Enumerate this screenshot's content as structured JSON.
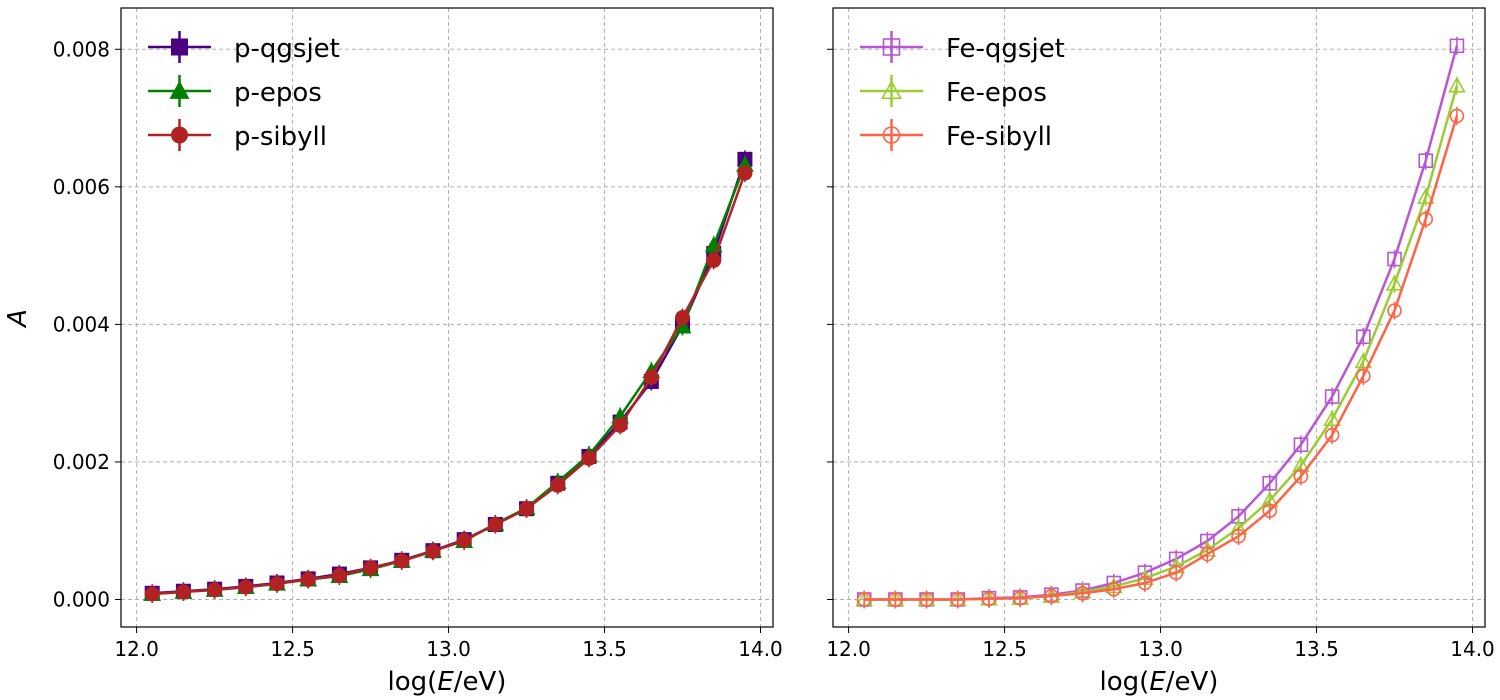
{
  "chart_data": [
    {
      "type": "line",
      "xlabel": "log(E/eV)",
      "ylabel": "A",
      "xlim": [
        11.95,
        14.04
      ],
      "ylim": [
        -0.0004,
        0.0086
      ],
      "xticks": [
        "12.0",
        "12.5",
        "13.0",
        "13.5",
        "14.0"
      ],
      "yticks": [
        "0.000",
        "0.002",
        "0.004",
        "0.006",
        "0.008"
      ],
      "grid": true,
      "legend_position": "top-left",
      "x": [
        12.05,
        12.15,
        12.25,
        12.35,
        12.45,
        12.55,
        12.65,
        12.75,
        12.85,
        12.95,
        13.05,
        13.15,
        13.25,
        13.35,
        13.45,
        13.55,
        13.65,
        13.75,
        13.85,
        13.95
      ],
      "series": [
        {
          "name": "p-qgsjet",
          "color": "#4b0082",
          "marker": "square",
          "filled": true,
          "values": [
            9e-05,
            0.00012,
            0.00015,
            0.00019,
            0.00024,
            0.0003,
            0.00037,
            0.00046,
            0.00057,
            0.00071,
            0.00087,
            0.00109,
            0.00132,
            0.00169,
            0.00208,
            0.00258,
            0.00317,
            0.00398,
            0.00503,
            0.0064
          ]
        },
        {
          "name": "p-epos",
          "color": "#008000",
          "marker": "triangle",
          "filled": true,
          "values": [
            8e-05,
            0.00011,
            0.00014,
            0.00018,
            0.00023,
            0.00029,
            0.00034,
            0.00044,
            0.00056,
            0.00071,
            0.00085,
            0.0011,
            0.00133,
            0.00171,
            0.0021,
            0.00266,
            0.00332,
            0.00397,
            0.00515,
            0.00632
          ]
        },
        {
          "name": "p-sibyll",
          "color": "#b22222",
          "marker": "circle",
          "filled": true,
          "values": [
            8e-05,
            0.00011,
            0.00014,
            0.00018,
            0.00023,
            0.00029,
            0.00035,
            0.00046,
            0.00056,
            0.0007,
            0.00086,
            0.00109,
            0.00132,
            0.00166,
            0.00205,
            0.00253,
            0.00323,
            0.0041,
            0.00493,
            0.0062
          ]
        }
      ]
    },
    {
      "type": "line",
      "xlabel": "log(E/eV)",
      "ylabel": "",
      "xlim": [
        11.95,
        14.04
      ],
      "ylim": [
        -0.0004,
        0.0086
      ],
      "xticks": [
        "12.0",
        "12.5",
        "13.0",
        "13.5",
        "14.0"
      ],
      "yticks": [
        "0.000",
        "0.002",
        "0.004",
        "0.006",
        "0.008"
      ],
      "grid": true,
      "legend_position": "top-left",
      "x": [
        12.05,
        12.15,
        12.25,
        12.35,
        12.45,
        12.55,
        12.65,
        12.75,
        12.85,
        12.95,
        13.05,
        13.15,
        13.25,
        13.35,
        13.45,
        13.55,
        13.65,
        13.75,
        13.85,
        13.95
      ],
      "series": [
        {
          "name": "Fe-qgsjet",
          "color": "#ba55d3",
          "marker": "square",
          "filled": false,
          "values": [
            0.0,
            0.0,
            0.0,
            0.0,
            2e-05,
            3e-05,
            7e-05,
            0.00013,
            0.00024,
            0.00039,
            0.00059,
            0.00085,
            0.00121,
            0.00169,
            0.00225,
            0.00295,
            0.00382,
            0.00495,
            0.00638,
            0.00805
          ]
        },
        {
          "name": "Fe-epos",
          "color": "#9acd32",
          "marker": "triangle",
          "filled": false,
          "values": [
            0.0,
            0.0,
            0.0,
            0.0,
            1e-05,
            2e-05,
            5e-05,
            0.00011,
            0.00019,
            0.00031,
            0.00048,
            0.00072,
            0.00104,
            0.00144,
            0.00195,
            0.00262,
            0.00346,
            0.00459,
            0.00585,
            0.00747
          ]
        },
        {
          "name": "Fe-sibyll",
          "color": "#ff6347",
          "marker": "circle",
          "filled": false,
          "values": [
            0.0,
            0.0,
            0.0,
            0.0,
            1e-05,
            2e-05,
            5e-05,
            9e-05,
            0.00015,
            0.00024,
            0.00039,
            0.00066,
            0.00092,
            0.00129,
            0.00179,
            0.00239,
            0.00325,
            0.0042,
            0.00553,
            0.00703
          ]
        }
      ]
    }
  ]
}
